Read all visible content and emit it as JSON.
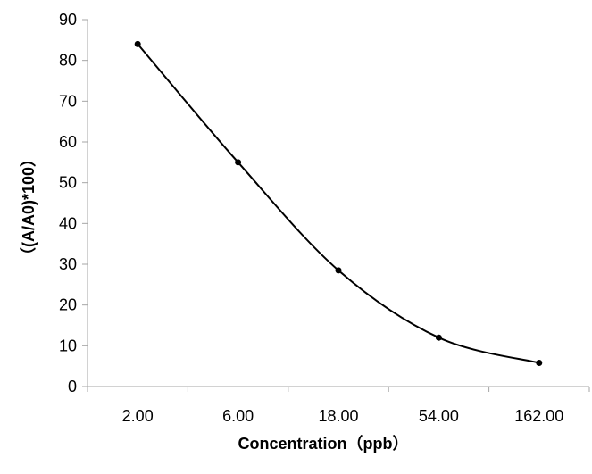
{
  "chart_data": {
    "type": "line",
    "title": "",
    "xlabel": "Concentration（ppb）",
    "ylabel": "（(A/A0)*100）",
    "x_scale": "categorical",
    "categories": [
      "2.00",
      "6.00",
      "18.00",
      "54.00",
      "162.00"
    ],
    "ylim": [
      0,
      90
    ],
    "y_ticks": [
      0,
      10,
      20,
      30,
      40,
      50,
      60,
      70,
      80,
      90
    ],
    "grid": false,
    "legend": "none",
    "series": [
      {
        "values": [
          84,
          55,
          28.5,
          12,
          5.8
        ]
      }
    ],
    "style": {
      "line_color": "#000000",
      "marker_color": "#000000",
      "axis_color": "#a6a6a6",
      "smooth": true
    }
  }
}
